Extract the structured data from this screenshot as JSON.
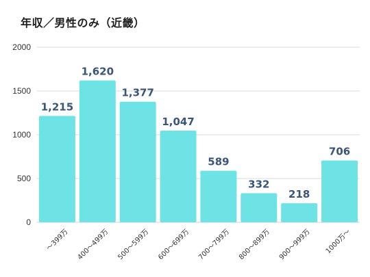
{
  "chart_data": {
    "type": "bar",
    "title": "年収／男性のみ（近畿）",
    "categories": [
      "〜399万",
      "400〜499万",
      "500〜599万",
      "600〜699万",
      "700〜799万",
      "800〜899万",
      "900〜999万",
      "1000万〜"
    ],
    "values": [
      1215,
      1620,
      1377,
      1047,
      589,
      332,
      218,
      706
    ],
    "value_labels": [
      "1,215",
      "1,620",
      "1,377",
      "1,047",
      "589",
      "332",
      "218",
      "706"
    ],
    "yticks": [
      "0",
      "500",
      "1000",
      "1500",
      "2000"
    ],
    "ylim": [
      0,
      2000
    ],
    "xlabel": "",
    "ylabel": "",
    "grid": true,
    "legend": "none",
    "colors": {
      "bar": "#6ee3e6",
      "grid": "#d9d9d9",
      "value_label": "#3a5577",
      "title": "#1f1f1f"
    }
  }
}
